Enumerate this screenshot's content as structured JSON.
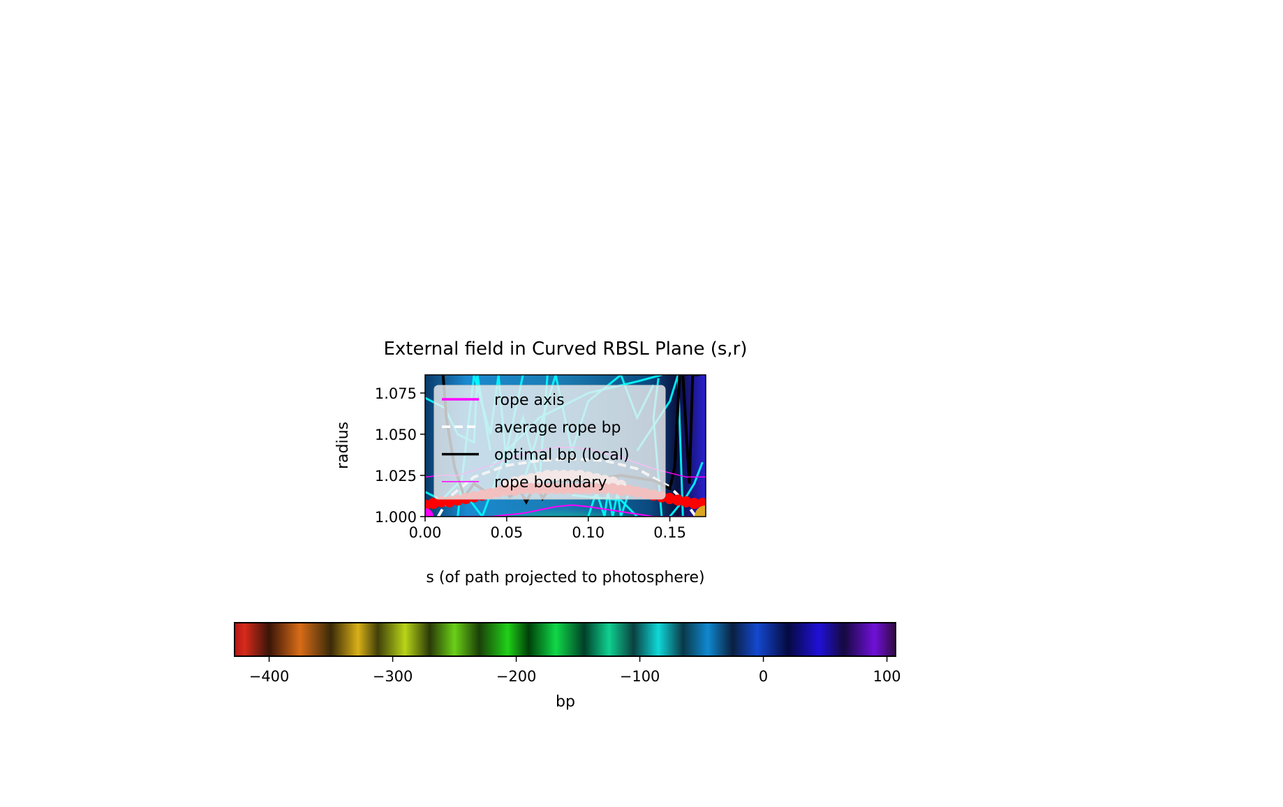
{
  "chart_data": {
    "type": "heatmap",
    "title": "External field in Curved RBSL Plane (s,r)",
    "xlabel": "s (of path projected to photosphere)",
    "ylabel": "radius",
    "xlim": [
      0,
      0.172
    ],
    "ylim": [
      1.0,
      1.086
    ],
    "xticks": [
      0.0,
      0.05,
      0.1,
      0.15
    ],
    "xtick_labels": [
      "0.00",
      "0.05",
      "0.10",
      "0.15"
    ],
    "yticks": [
      1.0,
      1.025,
      1.05,
      1.075
    ],
    "ytick_labels": [
      "1.000",
      "1.025",
      "1.050",
      "1.075"
    ],
    "grid": false,
    "legend": {
      "placement": "upper-left",
      "entries": [
        {
          "label": "rope axis",
          "color": "#ff00ff",
          "style": "solid"
        },
        {
          "label": "average rope bp",
          "color": "#ffffff",
          "style": "dashed"
        },
        {
          "label": "optimal bp (local)",
          "color": "#000000",
          "style": "solid"
        },
        {
          "label": "rope boundary",
          "color": "#ff00ff",
          "style": "thin"
        }
      ]
    },
    "colorbar": {
      "label": "bp",
      "range": [
        -428,
        107
      ],
      "ticks": [
        -400,
        -300,
        -200,
        -100,
        0,
        100
      ],
      "tick_labels": [
        "−400",
        "−300",
        "−200",
        "−100",
        "0",
        "100"
      ],
      "orientation": "horizontal"
    },
    "series": {
      "rope_axis": {
        "color": "#ff00ff",
        "s": [
          0.02,
          0.04,
          0.06,
          0.08,
          0.09,
          0.1,
          0.12,
          0.14,
          0.16,
          0.17
        ],
        "r": [
          1.0,
          1.0,
          1.002,
          1.006,
          1.007,
          1.006,
          1.003,
          1.0,
          1.0,
          1.0
        ]
      },
      "rope_boundary": {
        "color": "#ff00ff",
        "s": [
          0,
          0.01,
          0.02,
          0.04,
          0.06,
          0.08,
          0.09,
          0.1,
          0.12,
          0.14,
          0.16,
          0.172
        ],
        "r": [
          1.024,
          1.025,
          1.025,
          1.031,
          1.038,
          1.042,
          1.042,
          1.041,
          1.036,
          1.029,
          1.024,
          1.024
        ]
      },
      "average_rope_bp": {
        "color": "#ffffff",
        "s": [
          0.008,
          0.015,
          0.03,
          0.05,
          0.07,
          0.09,
          0.11,
          0.13,
          0.15,
          0.16,
          0.166
        ],
        "r": [
          1.0,
          1.012,
          1.024,
          1.031,
          1.034,
          1.035,
          1.034,
          1.029,
          1.018,
          1.008,
          1.0
        ]
      },
      "optimal_bp_local": {
        "color": "#000000",
        "s": [
          0.011,
          0.013,
          0.018,
          0.024,
          0.03,
          0.04,
          0.046,
          0.052,
          0.058,
          0.062,
          0.068,
          0.072,
          0.08,
          0.1,
          0.12,
          0.14,
          0.15,
          0.153,
          0.156,
          0.158,
          0.162,
          0.164,
          0.166,
          0.168
        ],
        "r": [
          1.086,
          1.06,
          1.03,
          1.012,
          1.02,
          1.013,
          1.018,
          1.012,
          1.016,
          1.009,
          1.02,
          1.011,
          1.022,
          1.022,
          1.025,
          1.022,
          1.017,
          1.03,
          1.086,
          1.086,
          1.02,
          1.086,
          1.086,
          1.086
        ]
      },
      "red_points": {
        "color": "#ff0000",
        "s": [
          0.0,
          0.005,
          0.01,
          0.015,
          0.02,
          0.025,
          0.03,
          0.035,
          0.04,
          0.045,
          0.05,
          0.055,
          0.06,
          0.065,
          0.07,
          0.075,
          0.08,
          0.085,
          0.09,
          0.095,
          0.1,
          0.105,
          0.11,
          0.115,
          0.12,
          0.125,
          0.13,
          0.135,
          0.14,
          0.145,
          0.15,
          0.155,
          0.16,
          0.165,
          0.17
        ],
        "r": [
          1.007,
          1.008,
          1.009,
          1.009,
          1.01,
          1.011,
          1.012,
          1.013,
          1.014,
          1.015,
          1.016,
          1.016,
          1.017,
          1.017,
          1.017,
          1.017,
          1.017,
          1.017,
          1.017,
          1.017,
          1.017,
          1.017,
          1.017,
          1.017,
          1.016,
          1.016,
          1.015,
          1.014,
          1.013,
          1.012,
          1.011,
          1.01,
          1.009,
          1.008,
          1.008
        ]
      },
      "pink_points": {
        "color": "#ffc0c0",
        "s": [
          0.05,
          0.055,
          0.06,
          0.065,
          0.07,
          0.075,
          0.08,
          0.085,
          0.09,
          0.095,
          0.1,
          0.105,
          0.11,
          0.115,
          0.12
        ],
        "r": [
          1.019,
          1.021,
          1.022,
          1.023,
          1.024,
          1.025,
          1.025,
          1.025,
          1.025,
          1.025,
          1.024,
          1.023,
          1.022,
          1.021,
          1.019
        ]
      },
      "start_marker": {
        "color": "#ff00ff",
        "s": 0.0,
        "r": 1.0
      },
      "end_marker": {
        "color": "#daa520",
        "s": 0.172,
        "r": 1.0
      },
      "field_lines": {
        "color": "#00ffff",
        "lines": [
          {
            "s": [
              0.0,
              0.012,
              0.02,
              0.03,
              0.032,
              0.04
            ],
            "r": [
              1.072,
              1.066,
              1.05,
              1.045,
              1.086,
              1.04
            ]
          },
          {
            "s": [
              0.0,
              0.01,
              0.02,
              0.035,
              0.05,
              0.06
            ],
            "r": [
              1.015,
              1.01,
              1.02,
              1.0,
              1.04,
              1.086
            ]
          },
          {
            "s": [
              0.02,
              0.03,
              0.04,
              0.045,
              0.05,
              0.06,
              0.07,
              0.075
            ],
            "r": [
              1.0,
              1.086,
              1.05,
              1.086,
              1.03,
              1.06,
              1.02,
              1.086
            ]
          },
          {
            "s": [
              0.06,
              0.08,
              0.09,
              0.1,
              0.12,
              0.13,
              0.14
            ],
            "r": [
              1.02,
              1.086,
              1.04,
              1.07,
              1.086,
              1.06,
              1.08
            ]
          },
          {
            "s": [
              0.04,
              0.07,
              0.1,
              0.13,
              0.145
            ],
            "r": [
              1.03,
              1.06,
              1.075,
              1.082,
              1.086
            ]
          },
          {
            "s": [
              0.13,
              0.14,
              0.15,
              0.155,
              0.158
            ],
            "r": [
              1.04,
              1.055,
              1.07,
              1.086,
              1.0
            ]
          },
          {
            "s": [
              0.15,
              0.16,
              0.165,
              0.17
            ],
            "r": [
              1.0,
              1.012,
              1.02,
              1.033
            ]
          },
          {
            "s": [
              0.13,
              0.12,
              0.1,
              0.09
            ],
            "r": [
              1.0,
              1.01,
              1.012,
              1.013
            ]
          },
          {
            "s": [
              0.1,
              0.105,
              0.11,
              0.112,
              0.115,
              0.118,
              0.12,
              0.125
            ],
            "r": [
              1.0,
              1.015,
              1.0,
              1.015,
              1.0,
              1.015,
              1.0,
              1.015
            ]
          },
          {
            "s": [
              0.145,
              0.14,
              0.143
            ],
            "r": [
              1.0,
              1.06,
              1.084
            ]
          }
        ]
      }
    }
  }
}
